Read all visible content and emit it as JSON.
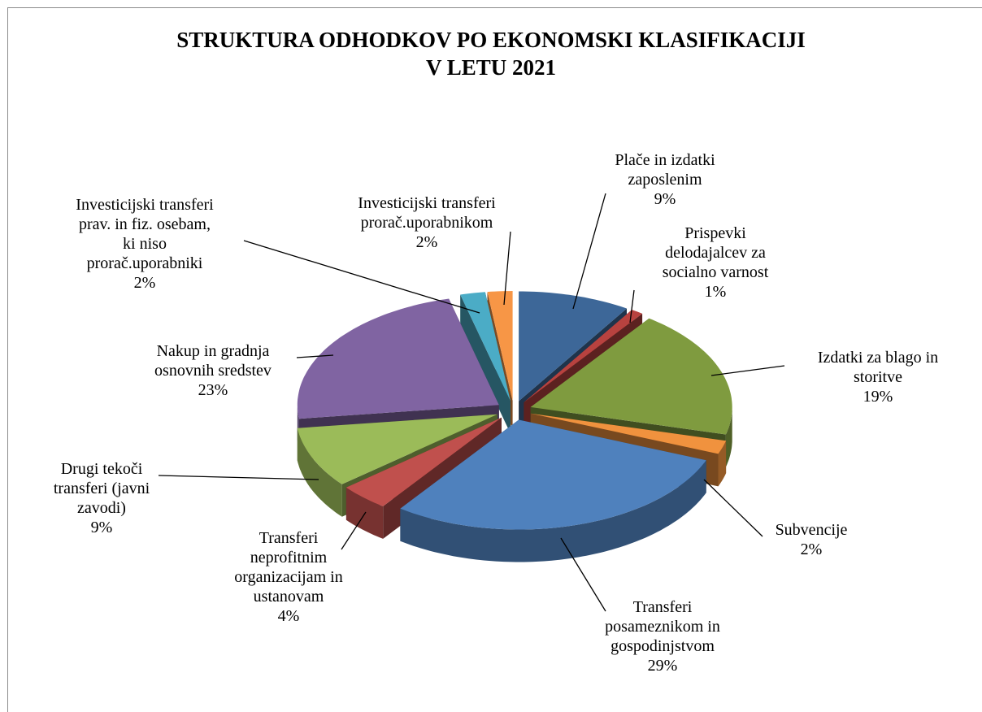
{
  "chart_data": {
    "type": "pie3d",
    "title": "STRUKTURA ODHODKOV PO EKONOMSKI KLASIFIKACIJI\nV LETU 2021",
    "categories": [
      "Plače in izdatki\nzaposlenim",
      "Prispevki\ndelodajalcev za\nsocialno varnost",
      "Izdatki za blago in\nstoritve",
      "Subvencije",
      "Transferi\nposameznikom in\ngospodinjstvom",
      "Transferi\nneprofitnim\norganizacijam in\nustanovam",
      "Drugi tekoči\ntransferi (javni\nzavodi)",
      "Nakup in gradnja\nosnovnih sredstev",
      "Investicijski transferi\nprav. in fiz. osebam,\nki niso\nprorač.uporabniki",
      "Investicijski transferi\nprorač.uporabnikom"
    ],
    "values": [
      9,
      1,
      19,
      2,
      29,
      4,
      9,
      23,
      2,
      2
    ],
    "value_labels": [
      "9%",
      "1%",
      "19%",
      "2%",
      "29%",
      "4%",
      "9%",
      "23%",
      "2%",
      "2%"
    ],
    "colors": [
      "#3d6798",
      "#b8423f",
      "#7f9b3f",
      "#f0923e",
      "#4f81bd",
      "#c0504d",
      "#9bbb59",
      "#8064a2",
      "#4bacc6",
      "#f79646"
    ]
  }
}
